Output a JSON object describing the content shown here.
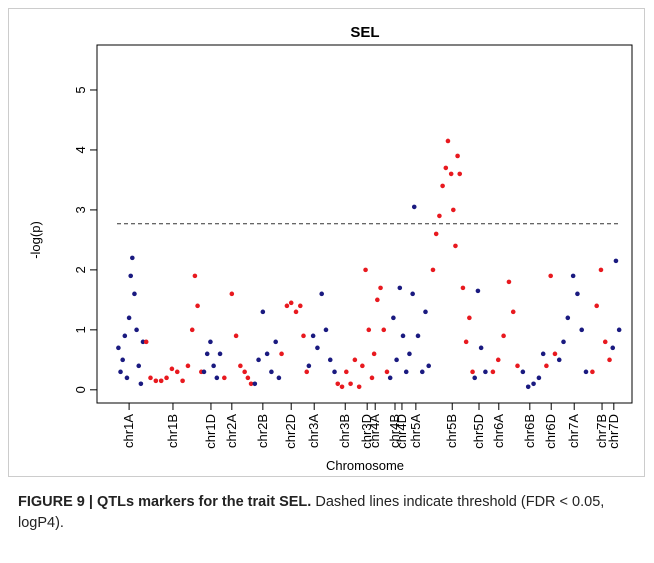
{
  "chart_data": {
    "type": "scatter",
    "title": "SEL",
    "xlabel": "Chromosome",
    "ylabel": "-log(p)",
    "xlim": [
      0,
      1000
    ],
    "ylim": [
      -0.22,
      5.75
    ],
    "yticks": [
      0,
      1,
      2,
      3,
      4,
      5
    ],
    "xticks": [
      {
        "value": 60,
        "label": "chr1A"
      },
      {
        "value": 142,
        "label": "chr1B"
      },
      {
        "value": 213,
        "label": "chr1D"
      },
      {
        "value": 252,
        "label": "chr2A"
      },
      {
        "value": 310,
        "label": "chr2B"
      },
      {
        "value": 363,
        "label": "chr2D"
      },
      {
        "value": 406,
        "label": "chr3A"
      },
      {
        "value": 464,
        "label": "chr3B"
      },
      {
        "value": 505,
        "label": "chr3D"
      },
      {
        "value": 520,
        "label": "chr4A"
      },
      {
        "value": 557,
        "label": "chr4B"
      },
      {
        "value": 570,
        "label": "chr4D"
      },
      {
        "value": 596,
        "label": "chr5A"
      },
      {
        "value": 664,
        "label": "chr5B"
      },
      {
        "value": 714,
        "label": "chr5D"
      },
      {
        "value": 751,
        "label": "chr6A"
      },
      {
        "value": 809,
        "label": "chr6B"
      },
      {
        "value": 849,
        "label": "chr6D"
      },
      {
        "value": 892,
        "label": "chr7A"
      },
      {
        "value": 944,
        "label": "chr7B"
      },
      {
        "value": 966,
        "label": "chr7D"
      }
    ],
    "threshold": 2.77,
    "series": [
      {
        "color": "#1a1a80",
        "x": [
          40,
          44,
          48,
          52,
          56,
          60,
          63,
          66,
          70,
          74,
          78,
          82,
          86
        ],
        "values": [
          0.7,
          0.3,
          0.5,
          0.9,
          0.2,
          1.2,
          1.9,
          2.2,
          1.6,
          1.0,
          0.4,
          0.1,
          0.8
        ]
      },
      {
        "color": "#e8191f",
        "x": [
          92,
          100,
          110,
          120,
          130,
          140,
          150,
          160,
          170,
          178,
          183,
          188,
          195
        ],
        "values": [
          0.8,
          0.2,
          0.15,
          0.15,
          0.2,
          0.35,
          0.3,
          0.15,
          0.4,
          1.0,
          1.9,
          1.4,
          0.3
        ]
      },
      {
        "color": "#1a1a80",
        "x": [
          200,
          206,
          212,
          218,
          224,
          230
        ],
        "values": [
          0.3,
          0.6,
          0.8,
          0.4,
          0.2,
          0.6
        ]
      },
      {
        "color": "#e8191f",
        "x": [
          238,
          252,
          260,
          268,
          276,
          282,
          288
        ],
        "values": [
          0.2,
          1.6,
          0.9,
          0.4,
          0.3,
          0.2,
          0.1
        ]
      },
      {
        "color": "#1a1a80",
        "x": [
          295,
          302,
          310,
          318,
          326,
          334,
          340
        ],
        "values": [
          0.1,
          0.5,
          1.3,
          0.6,
          0.3,
          0.8,
          0.2
        ]
      },
      {
        "color": "#e8191f",
        "x": [
          345,
          355,
          363,
          372,
          380,
          386,
          392
        ],
        "values": [
          0.6,
          1.4,
          1.45,
          1.3,
          1.4,
          0.9,
          0.3
        ]
      },
      {
        "color": "#1a1a80",
        "x": [
          396,
          404,
          412,
          420,
          428,
          436,
          444
        ],
        "values": [
          0.4,
          0.9,
          0.7,
          1.6,
          1.0,
          0.5,
          0.3
        ]
      },
      {
        "color": "#e8191f",
        "x": [
          450,
          458,
          466,
          474,
          482,
          490
        ],
        "values": [
          0.1,
          0.05,
          0.3,
          0.1,
          0.5,
          0.05
        ]
      },
      {
        "color": "#e8191f",
        "x": [
          496,
          502,
          508,
          514
        ],
        "values": [
          0.4,
          2.0,
          1.0,
          0.2
        ]
      },
      {
        "color": "#e8191f",
        "x": [
          518,
          524,
          530,
          536,
          542
        ],
        "values": [
          0.6,
          1.5,
          1.7,
          1.0,
          0.3
        ]
      },
      {
        "color": "#1a1a80",
        "x": [
          548,
          554,
          560
        ],
        "values": [
          0.2,
          1.2,
          0.5
        ]
      },
      {
        "color": "#1a1a80",
        "x": [
          566,
          572,
          578
        ],
        "values": [
          1.7,
          0.9,
          0.3
        ]
      },
      {
        "color": "#1a1a80",
        "x": [
          584,
          590,
          593,
          600,
          608,
          614,
          620
        ],
        "values": [
          0.6,
          1.6,
          3.05,
          0.9,
          0.3,
          1.3,
          0.4
        ]
      },
      {
        "color": "#e8191f",
        "x": [
          628,
          634,
          640,
          646,
          652,
          656,
          662,
          666,
          670,
          674,
          678,
          684,
          690,
          696,
          702
        ],
        "values": [
          2.0,
          2.6,
          2.9,
          3.4,
          3.7,
          4.15,
          3.6,
          3.0,
          2.4,
          3.9,
          3.6,
          1.7,
          0.8,
          1.2,
          0.3
        ]
      },
      {
        "color": "#1a1a80",
        "x": [
          706,
          712,
          718,
          726
        ],
        "values": [
          0.2,
          1.65,
          0.7,
          0.3
        ]
      },
      {
        "color": "#e8191f",
        "x": [
          740,
          750,
          760,
          770,
          778,
          786
        ],
        "values": [
          0.3,
          0.5,
          0.9,
          1.8,
          1.3,
          0.4
        ]
      },
      {
        "color": "#1a1a80",
        "x": [
          796,
          806,
          816,
          826,
          834
        ],
        "values": [
          0.3,
          0.05,
          0.1,
          0.2,
          0.6
        ]
      },
      {
        "color": "#e8191f",
        "x": [
          840,
          848,
          856
        ],
        "values": [
          0.4,
          1.9,
          0.6
        ]
      },
      {
        "color": "#1a1a80",
        "x": [
          864,
          872,
          880,
          890,
          898,
          906,
          914
        ],
        "values": [
          0.5,
          0.8,
          1.2,
          1.9,
          1.6,
          1.0,
          0.3
        ]
      },
      {
        "color": "#e8191f",
        "x": [
          926,
          934,
          942,
          950,
          958
        ],
        "values": [
          0.3,
          1.4,
          2.0,
          0.8,
          0.5
        ]
      },
      {
        "color": "#1a1a80",
        "x": [
          964,
          970,
          976
        ],
        "values": [
          0.7,
          2.15,
          1.0
        ]
      }
    ],
    "caption_label": "FIGURE 9 | QTLs markers for the trait SEL.",
    "caption_text": "Dashed lines indicate threshold (FDR < 0.05, logP4)."
  }
}
